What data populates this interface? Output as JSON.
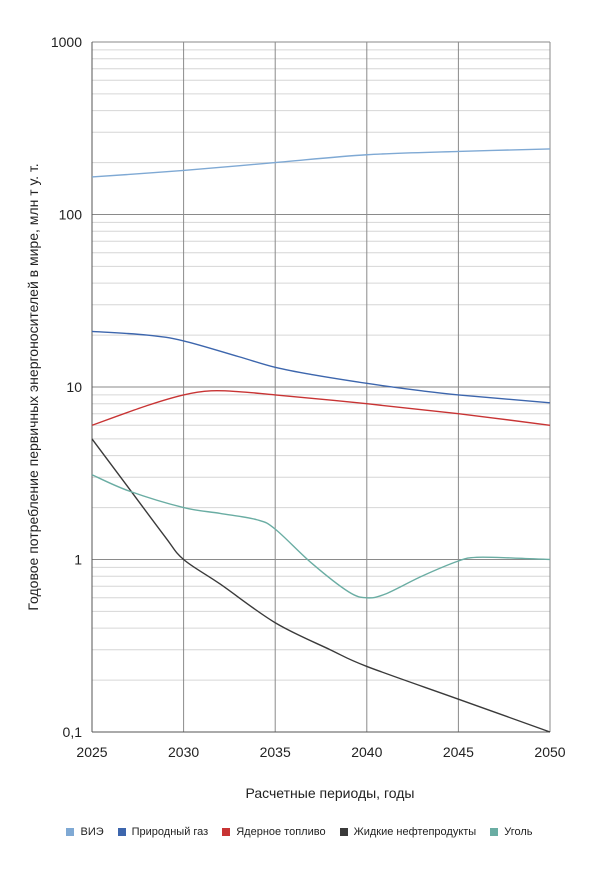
{
  "chart_data": {
    "type": "line",
    "xlabel": "Расчетные периоды, годы",
    "ylabel": "Годовое потребление первичных энергоносителей в мире, млн т у. т.",
    "yscale": "log",
    "xlim": [
      2025,
      2050
    ],
    "ylim": [
      0.1,
      1000
    ],
    "x_ticks": [
      "2025",
      "2030",
      "2035",
      "2040",
      "2045",
      "2050"
    ],
    "y_ticks": [
      {
        "value": 0.1,
        "label": "0,1"
      },
      {
        "value": 1,
        "label": "1"
      },
      {
        "value": 10,
        "label": "10"
      },
      {
        "value": 100,
        "label": "100"
      },
      {
        "value": 1000,
        "label": "1000"
      }
    ],
    "grid": true,
    "legend_position": "bottom",
    "series": [
      {
        "name": "ВИЭ",
        "color": "#7fa9d4",
        "x": [
          2025,
          2030,
          2035,
          2040,
          2045,
          2050
        ],
        "y": [
          165,
          180,
          200,
          222,
          232,
          240
        ]
      },
      {
        "name": "Природный газ",
        "color": "#3d66ad",
        "x": [
          2025,
          2028,
          2030,
          2033,
          2035,
          2037,
          2040,
          2043,
          2045,
          2050
        ],
        "y": [
          21,
          20,
          18.5,
          15,
          13,
          11.8,
          10.5,
          9.5,
          9,
          8.1
        ]
      },
      {
        "name": "Ядерное топливо",
        "color": "#c83434",
        "x": [
          2025,
          2028,
          2030,
          2031.5,
          2033,
          2035,
          2040,
          2045,
          2050
        ],
        "y": [
          6,
          7.8,
          9,
          9.5,
          9.4,
          9,
          8,
          7,
          6
        ]
      },
      {
        "name": "Жидкие нефтепродукты",
        "color": "#3a3a3a",
        "x": [
          2025,
          2027,
          2029,
          2030,
          2032,
          2035,
          2038,
          2040,
          2045,
          2050
        ],
        "y": [
          5,
          2.6,
          1.35,
          1.0,
          0.72,
          0.43,
          0.3,
          0.24,
          0.155,
          0.1
        ]
      },
      {
        "name": "Уголь",
        "color": "#6aada3",
        "x": [
          2025,
          2027,
          2030,
          2032,
          2034,
          2035,
          2037,
          2039,
          2040,
          2041,
          2043,
          2045,
          2046,
          2048,
          2050
        ],
        "y": [
          3.1,
          2.5,
          2.0,
          1.85,
          1.7,
          1.5,
          0.95,
          0.65,
          0.6,
          0.63,
          0.8,
          0.98,
          1.03,
          1.02,
          1.0
        ]
      }
    ]
  }
}
